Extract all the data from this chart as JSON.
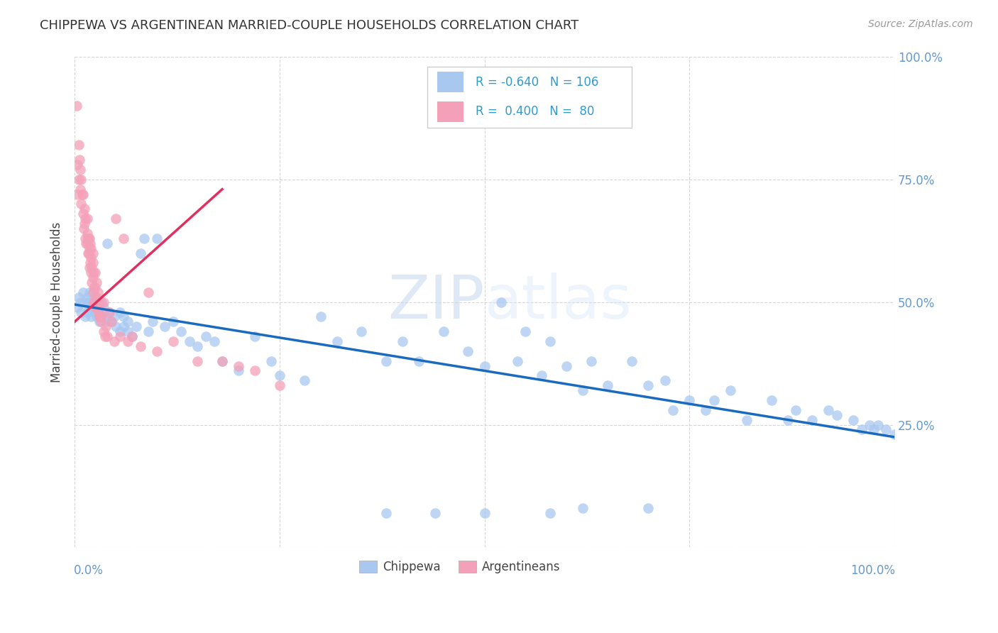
{
  "title": "CHIPPEWA VS ARGENTINEAN MARRIED-COUPLE HOUSEHOLDS CORRELATION CHART",
  "source": "Source: ZipAtlas.com",
  "ylabel": "Married-couple Households",
  "watermark": "ZIPatlas",
  "blue_R": -0.64,
  "blue_N": 106,
  "pink_R": 0.4,
  "pink_N": 80,
  "blue_color": "#a8c8f0",
  "pink_color": "#f4a0b8",
  "blue_line_color": "#1a6bbf",
  "pink_line_color": "#e03060",
  "grid_color": "#cccccc",
  "bg_color": "#ffffff",
  "title_color": "#333333",
  "source_color": "#999999",
  "axis_label_color": "#6699cc",
  "legend_text_color": "#3399cc",
  "xlim": [
    0,
    1.0
  ],
  "ylim": [
    0,
    1.0
  ],
  "blue_scatter_x": [
    0.003,
    0.005,
    0.007,
    0.008,
    0.01,
    0.012,
    0.013,
    0.015,
    0.015,
    0.016,
    0.018,
    0.018,
    0.02,
    0.02,
    0.022,
    0.022,
    0.023,
    0.025,
    0.025,
    0.027,
    0.028,
    0.028,
    0.03,
    0.03,
    0.032,
    0.033,
    0.035,
    0.037,
    0.038,
    0.04,
    0.042,
    0.045,
    0.048,
    0.05,
    0.055,
    0.055,
    0.06,
    0.06,
    0.065,
    0.065,
    0.07,
    0.075,
    0.08,
    0.085,
    0.09,
    0.095,
    0.1,
    0.11,
    0.12,
    0.13,
    0.14,
    0.15,
    0.16,
    0.17,
    0.18,
    0.2,
    0.22,
    0.24,
    0.25,
    0.28,
    0.3,
    0.32,
    0.35,
    0.38,
    0.4,
    0.42,
    0.45,
    0.48,
    0.5,
    0.52,
    0.54,
    0.55,
    0.57,
    0.58,
    0.6,
    0.62,
    0.63,
    0.65,
    0.68,
    0.7,
    0.72,
    0.73,
    0.75,
    0.77,
    0.78,
    0.8,
    0.82,
    0.85,
    0.87,
    0.88,
    0.9,
    0.92,
    0.93,
    0.95,
    0.96,
    0.97,
    0.975,
    0.98,
    0.99,
    1.0,
    0.58,
    0.62,
    0.5,
    0.44,
    0.7,
    0.38
  ],
  "blue_scatter_y": [
    0.49,
    0.51,
    0.5,
    0.48,
    0.52,
    0.5,
    0.47,
    0.51,
    0.48,
    0.5,
    0.49,
    0.52,
    0.5,
    0.47,
    0.49,
    0.52,
    0.5,
    0.48,
    0.51,
    0.47,
    0.5,
    0.48,
    0.46,
    0.49,
    0.47,
    0.5,
    0.49,
    0.47,
    0.46,
    0.62,
    0.48,
    0.46,
    0.47,
    0.45,
    0.48,
    0.44,
    0.45,
    0.47,
    0.44,
    0.46,
    0.43,
    0.45,
    0.6,
    0.63,
    0.44,
    0.46,
    0.63,
    0.45,
    0.46,
    0.44,
    0.42,
    0.41,
    0.43,
    0.42,
    0.38,
    0.36,
    0.43,
    0.38,
    0.35,
    0.34,
    0.47,
    0.42,
    0.44,
    0.38,
    0.42,
    0.38,
    0.44,
    0.4,
    0.37,
    0.5,
    0.38,
    0.44,
    0.35,
    0.42,
    0.37,
    0.32,
    0.38,
    0.33,
    0.38,
    0.33,
    0.34,
    0.28,
    0.3,
    0.28,
    0.3,
    0.32,
    0.26,
    0.3,
    0.26,
    0.28,
    0.26,
    0.28,
    0.27,
    0.26,
    0.24,
    0.25,
    0.24,
    0.25,
    0.24,
    0.23,
    0.07,
    0.08,
    0.07,
    0.07,
    0.08,
    0.07
  ],
  "pink_scatter_x": [
    0.002,
    0.003,
    0.003,
    0.005,
    0.005,
    0.006,
    0.007,
    0.007,
    0.008,
    0.008,
    0.009,
    0.01,
    0.01,
    0.011,
    0.012,
    0.012,
    0.013,
    0.013,
    0.014,
    0.015,
    0.015,
    0.015,
    0.016,
    0.016,
    0.017,
    0.017,
    0.018,
    0.018,
    0.018,
    0.019,
    0.019,
    0.02,
    0.02,
    0.02,
    0.021,
    0.021,
    0.022,
    0.022,
    0.022,
    0.022,
    0.023,
    0.023,
    0.023,
    0.024,
    0.025,
    0.025,
    0.025,
    0.026,
    0.027,
    0.027,
    0.028,
    0.028,
    0.029,
    0.03,
    0.03,
    0.031,
    0.032,
    0.033,
    0.035,
    0.035,
    0.037,
    0.038,
    0.04,
    0.042,
    0.045,
    0.048,
    0.05,
    0.055,
    0.06,
    0.065,
    0.07,
    0.08,
    0.09,
    0.1,
    0.12,
    0.15,
    0.18,
    0.2,
    0.22,
    0.25
  ],
  "pink_scatter_y": [
    0.9,
    0.78,
    0.72,
    0.82,
    0.75,
    0.79,
    0.73,
    0.77,
    0.7,
    0.75,
    0.72,
    0.68,
    0.72,
    0.65,
    0.66,
    0.69,
    0.63,
    0.67,
    0.62,
    0.64,
    0.67,
    0.62,
    0.6,
    0.63,
    0.6,
    0.63,
    0.57,
    0.61,
    0.63,
    0.58,
    0.62,
    0.56,
    0.59,
    0.61,
    0.54,
    0.57,
    0.52,
    0.55,
    0.58,
    0.6,
    0.5,
    0.53,
    0.56,
    0.5,
    0.49,
    0.53,
    0.56,
    0.49,
    0.51,
    0.54,
    0.49,
    0.52,
    0.48,
    0.47,
    0.5,
    0.47,
    0.46,
    0.47,
    0.44,
    0.5,
    0.43,
    0.45,
    0.43,
    0.48,
    0.46,
    0.42,
    0.67,
    0.43,
    0.63,
    0.42,
    0.43,
    0.41,
    0.52,
    0.4,
    0.42,
    0.38,
    0.38,
    0.37,
    0.36,
    0.33
  ],
  "pink_line_x0": 0.0,
  "pink_line_x1": 0.18,
  "blue_line_x0": 0.0,
  "blue_line_x1": 1.0,
  "blue_line_y0": 0.495,
  "blue_line_y1": 0.225,
  "pink_line_y0": 0.46,
  "pink_line_y1": 0.73
}
